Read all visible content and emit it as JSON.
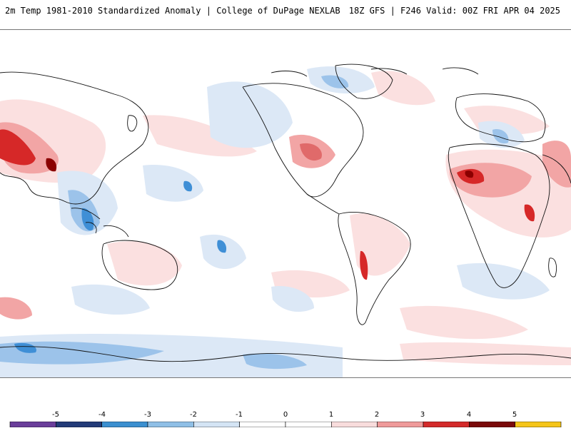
{
  "header": {
    "title_left": "2m Temp 1981-2010 Standardized Anomaly | College of DuPage NEXLAB",
    "title_right": "18Z GFS | F246 Valid: 00Z FRI APR 04 2025"
  },
  "colorbar": {
    "ticks": [
      "-5",
      "-4",
      "-3",
      "-2",
      "-1",
      "0",
      "1",
      "2",
      "3",
      "4",
      "5"
    ],
    "colors": [
      "#6a3d9a",
      "#223a78",
      "#3a8fd0",
      "#8fbfe6",
      "#d4e4f4",
      "#ffffff",
      "#ffffff",
      "#f8dcdc",
      "#ef9a9a",
      "#d42a2a",
      "#7a0a0a",
      "#f5c518"
    ]
  },
  "map": {
    "palette": {
      "warm_light": "#fbe0e0",
      "warm_mid": "#f2a5a5",
      "warm_strong": "#d62828",
      "warm_extreme": "#8b0000",
      "cool_light": "#dce8f6",
      "cool_mid": "#9cc3ea",
      "cool_strong": "#3f8fd6",
      "cool_extreme": "#1f3f8a",
      "coast": "#111111"
    }
  }
}
